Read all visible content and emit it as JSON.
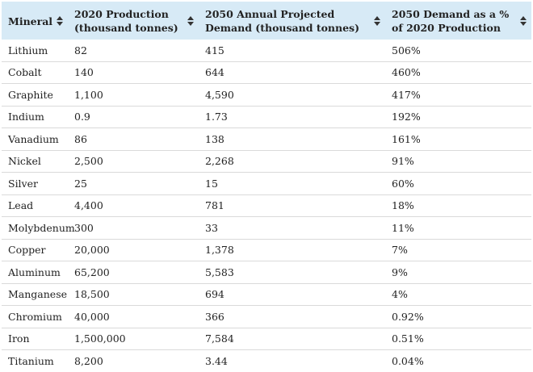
{
  "table": {
    "headers": [
      "Mineral",
      "2020 Production (thousand tonnes)",
      "2050 Annual Projected Demand (thousand tonnes)",
      "2050 Demand as a % of 2020 Production"
    ],
    "rows": [
      [
        "Lithium",
        "82",
        "415",
        "506%"
      ],
      [
        "Cobalt",
        "140",
        "644",
        "460%"
      ],
      [
        "Graphite",
        "1,100",
        "4,590",
        "417%"
      ],
      [
        "Indium",
        "0.9",
        "1.73",
        "192%"
      ],
      [
        "Vanadium",
        "86",
        "138",
        "161%"
      ],
      [
        "Nickel",
        "2,500",
        "2,268",
        "91%"
      ],
      [
        "Silver",
        "25",
        "15",
        "60%"
      ],
      [
        "Lead",
        "4,400",
        "781",
        "18%"
      ],
      [
        "Molybdenum",
        "300",
        "33",
        "11%"
      ],
      [
        "Copper",
        "20,000",
        "1,378",
        "7%"
      ],
      [
        "Aluminum",
        "65,200",
        "5,583",
        "9%"
      ],
      [
        "Manganese",
        "18,500",
        "694",
        "4%"
      ],
      [
        "Chromium",
        "40,000",
        "366",
        "0.92%"
      ],
      [
        "Iron",
        "1,500,000",
        "7,584",
        "0.51%"
      ],
      [
        "Titanium",
        "8,200",
        "3.44",
        "0.04%"
      ]
    ]
  },
  "icons": {
    "sort": "sort-icon"
  },
  "colors": {
    "header_bg": "#d7eaf6",
    "row_divider": "#dadada",
    "text": "#222222"
  }
}
